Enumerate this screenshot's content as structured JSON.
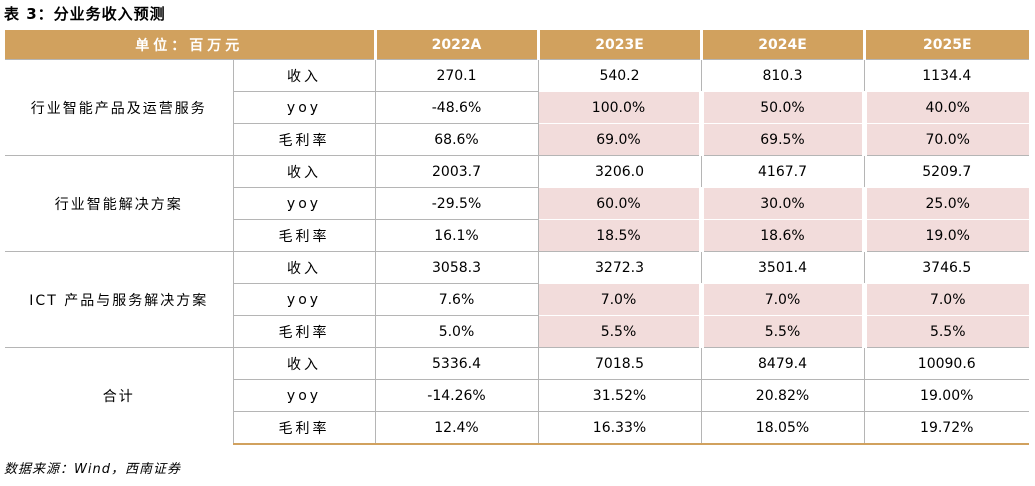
{
  "caption": "表 3：分业务收入预测",
  "header": {
    "unit": "单位：百万元",
    "years": [
      "2022A",
      "2023E",
      "2024E",
      "2025E"
    ]
  },
  "segments": [
    {
      "name": "行业智能产品及运营服务",
      "rows": [
        {
          "metric": "收入",
          "values": [
            "270.1",
            "540.2",
            "810.3",
            "1134.4"
          ]
        },
        {
          "metric": "yoy",
          "values": [
            "-48.6%",
            "100.0%",
            "50.0%",
            "40.0%"
          ]
        },
        {
          "metric": "毛利率",
          "values": [
            "68.6%",
            "69.0%",
            "69.5%",
            "70.0%"
          ]
        }
      ]
    },
    {
      "name": "行业智能解决方案",
      "rows": [
        {
          "metric": "收入",
          "values": [
            "2003.7",
            "3206.0",
            "4167.7",
            "5209.7"
          ]
        },
        {
          "metric": "yoy",
          "values": [
            "-29.5%",
            "60.0%",
            "30.0%",
            "25.0%"
          ]
        },
        {
          "metric": "毛利率",
          "values": [
            "16.1%",
            "18.5%",
            "18.6%",
            "19.0%"
          ]
        }
      ]
    },
    {
      "name": "ICT 产品与服务解决方案",
      "rows": [
        {
          "metric": "收入",
          "values": [
            "3058.3",
            "3272.3",
            "3501.4",
            "3746.5"
          ]
        },
        {
          "metric": "yoy",
          "values": [
            "7.6%",
            "7.0%",
            "7.0%",
            "7.0%"
          ]
        },
        {
          "metric": "毛利率",
          "values": [
            "5.0%",
            "5.5%",
            "5.5%",
            "5.5%"
          ]
        }
      ]
    },
    {
      "name": "合计",
      "rows": [
        {
          "metric": "收入",
          "values": [
            "5336.4",
            "7018.5",
            "8479.4",
            "10090.6"
          ]
        },
        {
          "metric": "yoy",
          "values": [
            "-14.26%",
            "31.52%",
            "20.82%",
            "19.00%"
          ]
        },
        {
          "metric": "毛利率",
          "values": [
            "12.4%",
            "16.33%",
            "18.05%",
            "19.72%"
          ]
        }
      ]
    }
  ],
  "source": "数据来源：Wind，西南证券",
  "highlight_color": "#f2dcdb",
  "header_color": "#d1a15e"
}
